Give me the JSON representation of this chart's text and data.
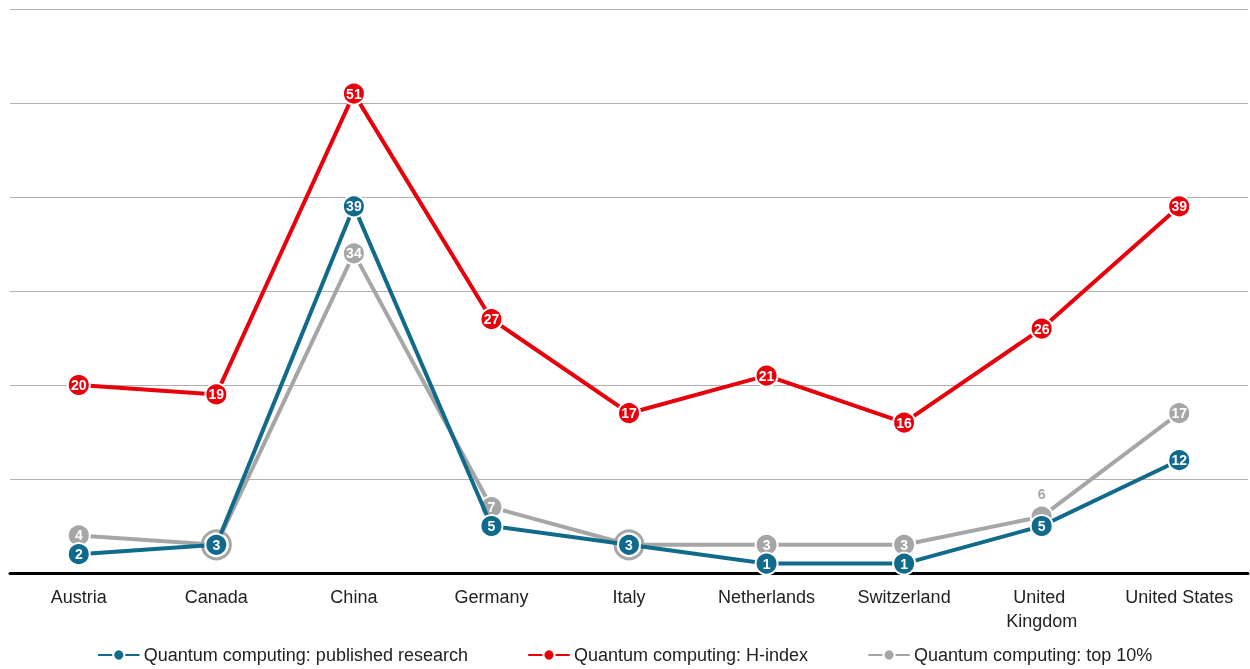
{
  "chart_data": {
    "type": "line",
    "categories": [
      "Austria",
      "Canada",
      "China",
      "Germany",
      "Italy",
      "Netherlands",
      "Switzerland",
      "United Kingdom",
      "United States"
    ],
    "series": [
      {
        "name": "Quantum computing: published research",
        "color": "#0f6a8b",
        "values": [
          2,
          3,
          39,
          5,
          3,
          1,
          1,
          5,
          12
        ]
      },
      {
        "name": "Quantum computing: H-index",
        "color": "#e8000b",
        "values": [
          20,
          19,
          51,
          27,
          17,
          21,
          16,
          26,
          39
        ]
      },
      {
        "name": "Quantum computing: top 10%",
        "color": "#a6a6a6",
        "values": [
          4,
          3,
          34,
          7,
          3,
          3,
          3,
          6,
          17
        ],
        "value_labels": [
          "4",
          null,
          "34",
          "7",
          null,
          "3",
          "3",
          "6",
          "17"
        ]
      }
    ],
    "ylim": [
      0,
      60
    ],
    "yticks": [
      {
        "value": 0,
        "label": null
      },
      {
        "value": 10,
        "label": null
      },
      {
        "value": 20,
        "label": null
      },
      {
        "value": 30,
        "label": null
      },
      {
        "value": 40,
        "label": null
      },
      {
        "value": 50,
        "label": null
      },
      {
        "value": 60,
        "label": null
      }
    ],
    "tick_labels": "x",
    "grid": "y",
    "legend": "bottom",
    "marker": "circle",
    "line_style": "solid",
    "data_labels": true
  }
}
